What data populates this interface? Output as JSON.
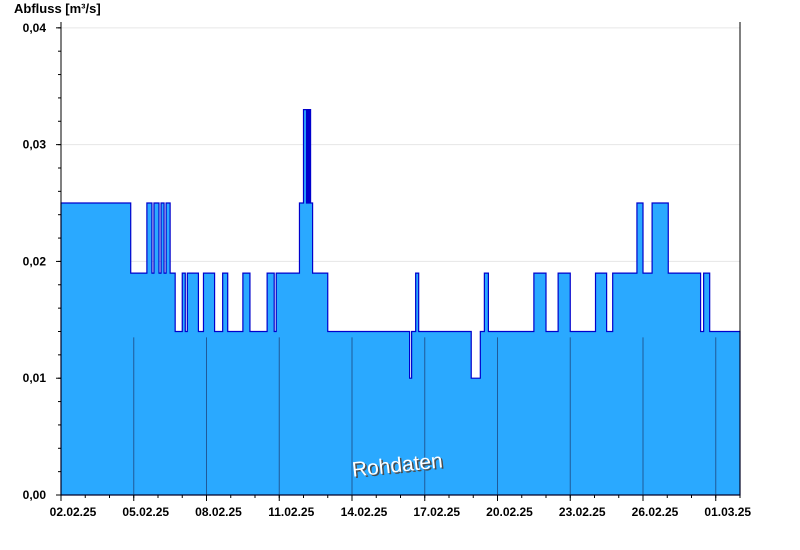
{
  "chart_data": {
    "type": "area",
    "ylabel": "Abfluss [m³/s]",
    "ylim": [
      0,
      0.0405
    ],
    "yticks": [
      0,
      0.01,
      0.02,
      0.03,
      0.04
    ],
    "ytick_labels": [
      "0,00",
      "0,01",
      "0,02",
      "0,03",
      "0,04"
    ],
    "xlim": [
      "2025-02-02T00:00",
      "2025-03-02T00:00"
    ],
    "xticks": [
      "2025-02-02",
      "2025-02-05",
      "2025-02-08",
      "2025-02-11",
      "2025-02-14",
      "2025-02-17",
      "2025-02-20",
      "2025-02-23",
      "2025-02-26",
      "2025-03-01"
    ],
    "xtick_labels": [
      "02.02.25",
      "05.02.25",
      "08.02.25",
      "11.02.25",
      "14.02.25",
      "17.02.25",
      "20.02.25",
      "23.02.25",
      "26.02.25",
      "01.03.25"
    ],
    "watermark": "Rohdaten",
    "grid": "horizontal",
    "colors": {
      "fill": "#2aa9ff",
      "line": "#0000cc",
      "day_line": "#1f5a99",
      "grid": "#e6e6e6"
    },
    "series": [
      {
        "x": [
          "2025-02-02T00:00",
          "2025-02-04T21:00",
          "2025-02-05T13:00",
          "2025-02-05T18:00",
          "2025-02-05T20:00",
          "2025-02-06T01:00",
          "2025-02-06T03:00",
          "2025-02-06T06:00",
          "2025-02-06T08:00",
          "2025-02-06T12:00",
          "2025-02-06T17:00",
          "2025-02-07T00:00",
          "2025-02-07T03:00",
          "2025-02-07T05:00",
          "2025-02-07T16:00",
          "2025-02-07T21:00",
          "2025-02-08T08:00",
          "2025-02-08T16:00",
          "2025-02-08T21:00",
          "2025-02-09T12:00",
          "2025-02-09T19:00",
          "2025-02-10T12:00",
          "2025-02-10T19:00",
          "2025-02-10T21:00",
          "2025-02-11T00:00",
          "2025-02-11T20:00",
          "2025-02-12T00:00",
          "2025-02-12T03:00",
          "2025-02-12T04:00",
          "2025-02-12T05:00",
          "2025-02-12T06:00",
          "2025-02-12T07:00",
          "2025-02-12T09:00",
          "2025-02-13T00:00",
          "2025-02-13T23:00",
          "2025-02-15T00:00",
          "2025-02-16T09:00",
          "2025-02-16T11:00",
          "2025-02-16T15:00",
          "2025-02-16T18:00",
          "2025-02-17T04:00",
          "2025-02-18T22:00",
          "2025-02-19T07:00",
          "2025-02-19T11:00",
          "2025-02-19T15:00",
          "2025-02-20T00:00",
          "2025-02-21T12:00",
          "2025-02-22T00:00",
          "2025-02-22T12:00",
          "2025-02-23T00:00",
          "2025-02-24T01:00",
          "2025-02-24T12:00",
          "2025-02-24T18:00",
          "2025-02-25T18:00",
          "2025-02-26T00:00",
          "2025-02-26T09:00",
          "2025-02-27T01:00",
          "2025-02-28T09:00",
          "2025-02-28T12:00",
          "2025-02-28T18:00",
          "2025-03-01T00:00"
        ],
        "y": [
          0.025,
          0.019,
          0.025,
          0.019,
          0.025,
          0.019,
          0.025,
          0.019,
          0.025,
          0.019,
          0.014,
          0.019,
          0.014,
          0.019,
          0.014,
          0.019,
          0.014,
          0.019,
          0.014,
          0.019,
          0.014,
          0.019,
          0.014,
          0.019,
          0.019,
          0.025,
          0.033,
          0.025,
          0.033,
          0.025,
          0.033,
          0.025,
          0.019,
          0.014,
          0.014,
          0.014,
          0.01,
          0.014,
          0.019,
          0.014,
          0.014,
          0.01,
          0.014,
          0.019,
          0.014,
          0.014,
          0.019,
          0.014,
          0.019,
          0.014,
          0.019,
          0.014,
          0.019,
          0.025,
          0.019,
          0.025,
          0.019,
          0.014,
          0.019,
          0.014,
          0.014
        ]
      }
    ]
  }
}
